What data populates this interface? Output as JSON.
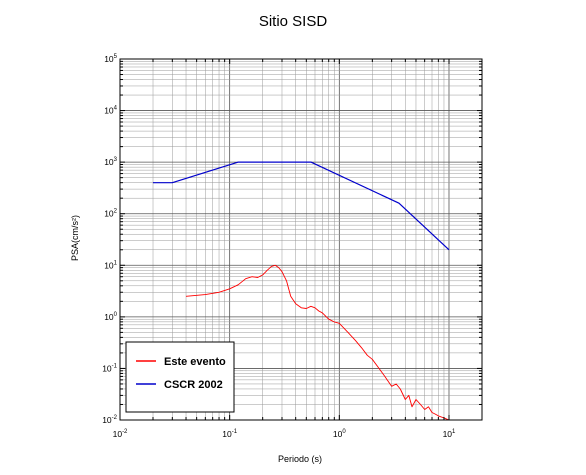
{
  "chart_data": {
    "type": "line",
    "title": "Sitio SISD",
    "xlabel": "Periodo (s)",
    "ylabel": "PSA(cm/s²)",
    "x_scale": "log",
    "y_scale": "log",
    "xlim": [
      0.01,
      20
    ],
    "ylim": [
      0.01,
      100000
    ],
    "x_ticks": [
      0.01,
      0.1,
      1,
      10
    ],
    "x_tick_labels": [
      {
        "base": "10",
        "exp": "-2"
      },
      {
        "base": "10",
        "exp": "-1"
      },
      {
        "base": "10",
        "exp": "0"
      },
      {
        "base": "10",
        "exp": "1"
      }
    ],
    "y_ticks": [
      0.01,
      0.1,
      1,
      10,
      100,
      1000,
      10000,
      100000
    ],
    "y_tick_labels": [
      {
        "base": "10",
        "exp": "-2"
      },
      {
        "base": "10",
        "exp": "-1"
      },
      {
        "base": "10",
        "exp": "0"
      },
      {
        "base": "10",
        "exp": "1"
      },
      {
        "base": "10",
        "exp": "2"
      },
      {
        "base": "10",
        "exp": "3"
      },
      {
        "base": "10",
        "exp": "4"
      },
      {
        "base": "10",
        "exp": "5"
      }
    ],
    "grid": true,
    "legend_position": "bottom-left",
    "series": [
      {
        "name": "Este evento",
        "color": "#ff0000",
        "x": [
          0.04,
          0.06,
          0.08,
          0.1,
          0.12,
          0.14,
          0.16,
          0.18,
          0.2,
          0.22,
          0.24,
          0.26,
          0.28,
          0.3,
          0.33,
          0.36,
          0.4,
          0.45,
          0.5,
          0.55,
          0.6,
          0.65,
          0.7,
          0.8,
          0.9,
          1.0,
          1.2,
          1.4,
          1.6,
          1.8,
          2.0,
          2.3,
          2.6,
          3.0,
          3.3,
          3.6,
          4.0,
          4.3,
          4.6,
          5.0,
          5.5,
          6.0,
          6.5,
          7.0,
          7.5,
          8.0,
          9.0,
          10.0
        ],
        "y": [
          2.5,
          2.7,
          3.0,
          3.5,
          4.2,
          5.5,
          6.0,
          5.8,
          6.5,
          8.0,
          9.5,
          10.0,
          9.0,
          7.5,
          5.0,
          2.5,
          1.8,
          1.5,
          1.45,
          1.6,
          1.5,
          1.3,
          1.2,
          0.9,
          0.8,
          0.75,
          0.5,
          0.35,
          0.25,
          0.18,
          0.15,
          0.1,
          0.07,
          0.045,
          0.05,
          0.04,
          0.025,
          0.03,
          0.018,
          0.025,
          0.02,
          0.016,
          0.018,
          0.014,
          0.013,
          0.012,
          0.011,
          0.01
        ]
      },
      {
        "name": "CSCR 2002",
        "color": "#0000cc",
        "x": [
          0.02,
          0.03,
          0.12,
          0.55,
          3.5,
          10.0
        ],
        "y": [
          400,
          400,
          1000,
          1000,
          160,
          20
        ]
      }
    ]
  }
}
